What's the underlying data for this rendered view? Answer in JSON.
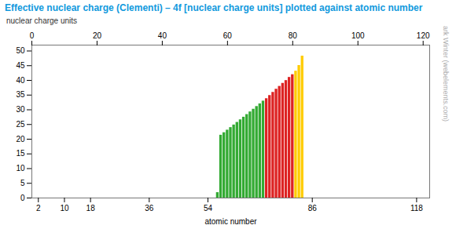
{
  "chart_data": {
    "type": "bar",
    "title": "Effective nuclear charge (Clementi) – 4f [nuclear charge units] plotted against atomic number",
    "xlabel": "atomic number",
    "ylabel": "nuclear charge units",
    "annotations": [
      "© Mark Winter (webelements.com)"
    ],
    "x": [
      57,
      58,
      59,
      60,
      61,
      62,
      63,
      64,
      65,
      66,
      67,
      68,
      69,
      70,
      71,
      72,
      73,
      74,
      75,
      76,
      77,
      78,
      79,
      80,
      81,
      82,
      83
    ],
    "values": [
      1.842,
      21.37,
      22.22,
      23.09,
      23.96,
      24.84,
      25.72,
      26.6,
      27.49,
      28.39,
      29.29,
      30.2,
      31.12,
      32.03,
      32.96,
      33.79,
      34.86,
      35.93,
      37.01,
      37.97,
      39.0,
      39.95,
      41.02,
      41.95,
      43.15,
      45.07,
      48.27
    ],
    "colors": [
      "#33aa33",
      "#33aa33",
      "#33aa33",
      "#33aa33",
      "#33aa33",
      "#33aa33",
      "#33aa33",
      "#33aa33",
      "#33aa33",
      "#33aa33",
      "#33aa33",
      "#33aa33",
      "#33aa33",
      "#33aa33",
      "#33aa33",
      "#dd2222",
      "#dd2222",
      "#dd2222",
      "#dd2222",
      "#dd2222",
      "#dd2222",
      "#dd2222",
      "#dd2222",
      "#dd2222",
      "#ffcc00",
      "#ffcc00",
      "#ffcc00"
    ],
    "xlim": [
      0,
      122
    ],
    "xticks": [
      2,
      10,
      18,
      36,
      54,
      86,
      118
    ],
    "x2lim": [
      0,
      122
    ],
    "x2ticks": [
      0,
      20,
      40,
      60,
      80,
      100,
      120
    ],
    "ylim": [
      0,
      52
    ],
    "yticks": [
      0,
      5,
      10,
      15,
      20,
      25,
      30,
      35,
      40,
      45,
      50
    ],
    "grid": false
  }
}
